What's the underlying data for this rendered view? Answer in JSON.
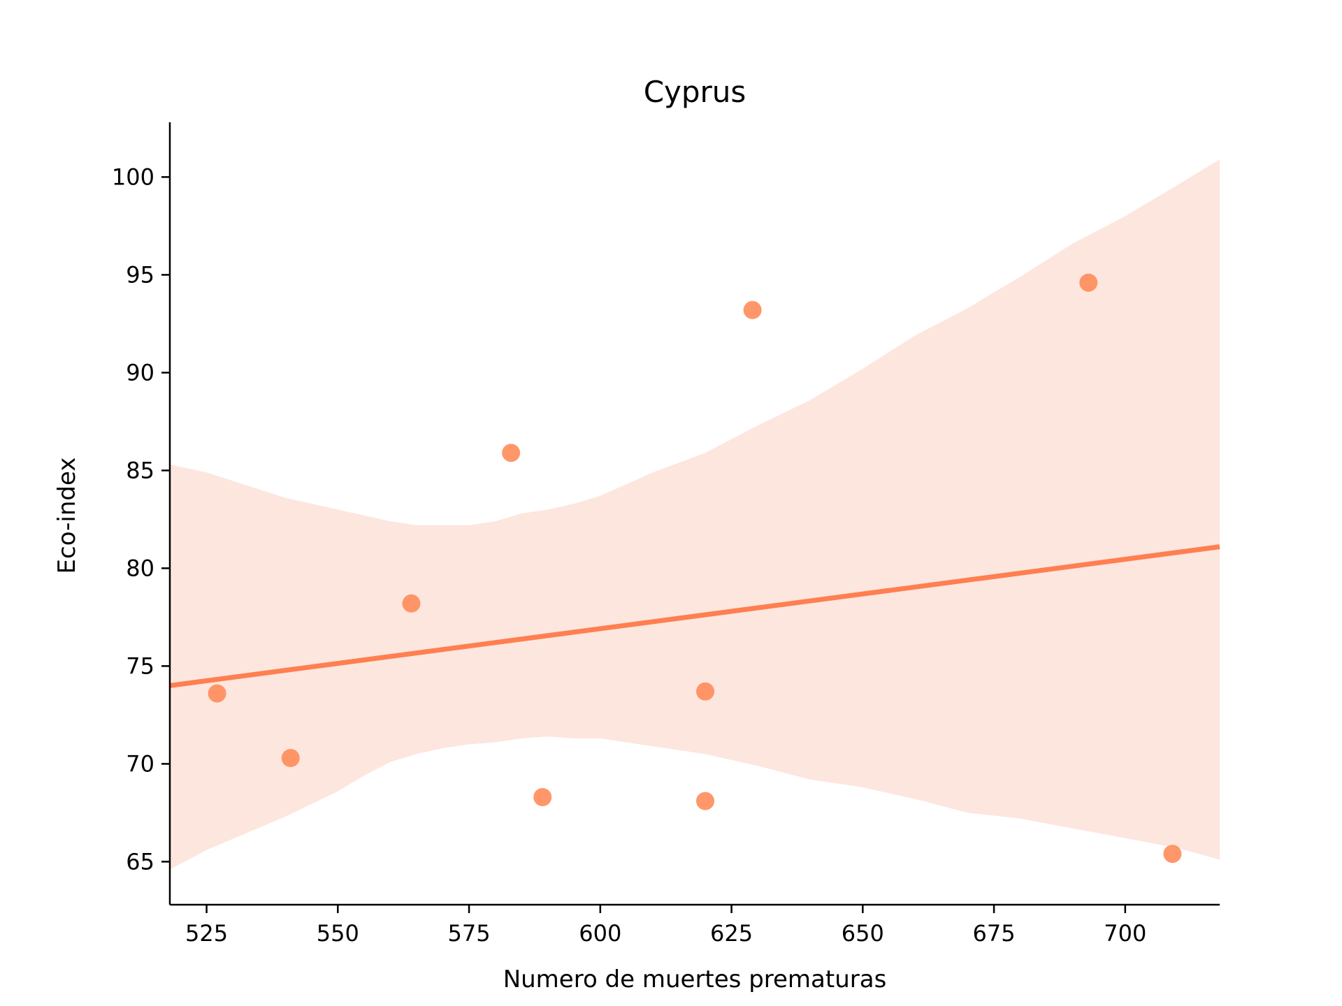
{
  "chart_data": {
    "type": "scatter",
    "title": "Cyprus",
    "xlabel": "Numero de muertes prematuras",
    "ylabel": "Eco-index",
    "xlim": [
      518,
      718
    ],
    "ylim": [
      62.8,
      102.8
    ],
    "xticks": [
      525,
      550,
      575,
      600,
      625,
      650,
      675,
      700
    ],
    "yticks": [
      65,
      70,
      75,
      80,
      85,
      90,
      95,
      100
    ],
    "grid": false,
    "legend": "none",
    "points": [
      {
        "x": 527,
        "y": 73.6
      },
      {
        "x": 541,
        "y": 70.3
      },
      {
        "x": 564,
        "y": 78.2
      },
      {
        "x": 583,
        "y": 85.9
      },
      {
        "x": 589,
        "y": 68.3
      },
      {
        "x": 620,
        "y": 73.7
      },
      {
        "x": 620,
        "y": 68.1
      },
      {
        "x": 629,
        "y": 93.2
      },
      {
        "x": 693,
        "y": 94.6
      },
      {
        "x": 709,
        "y": 65.4
      }
    ],
    "regression_line": {
      "x": [
        518,
        718
      ],
      "y": [
        74.0,
        81.1
      ]
    },
    "confidence_band": {
      "x": [
        518,
        525,
        540,
        550,
        555,
        560,
        565,
        570,
        575,
        580,
        585,
        590,
        595,
        600,
        605,
        610,
        620,
        630,
        640,
        650,
        660,
        670,
        680,
        690,
        700,
        710,
        718
      ],
      "upper": [
        85.3,
        84.9,
        83.6,
        83.0,
        82.7,
        82.4,
        82.2,
        82.2,
        82.2,
        82.4,
        82.8,
        83.0,
        83.3,
        83.7,
        84.3,
        84.9,
        85.9,
        87.3,
        88.6,
        90.2,
        91.9,
        93.3,
        94.9,
        96.6,
        98.0,
        99.6,
        100.9
      ],
      "lower": [
        64.6,
        65.6,
        67.3,
        68.6,
        69.4,
        70.1,
        70.5,
        70.8,
        71.0,
        71.1,
        71.3,
        71.4,
        71.3,
        71.3,
        71.1,
        70.9,
        70.5,
        69.9,
        69.2,
        68.8,
        68.2,
        67.5,
        67.2,
        66.7,
        66.2,
        65.7,
        65.1
      ]
    },
    "colors": {
      "points": "#ff8c5a",
      "line": "#ff7f50",
      "band": "#fde6de"
    }
  }
}
